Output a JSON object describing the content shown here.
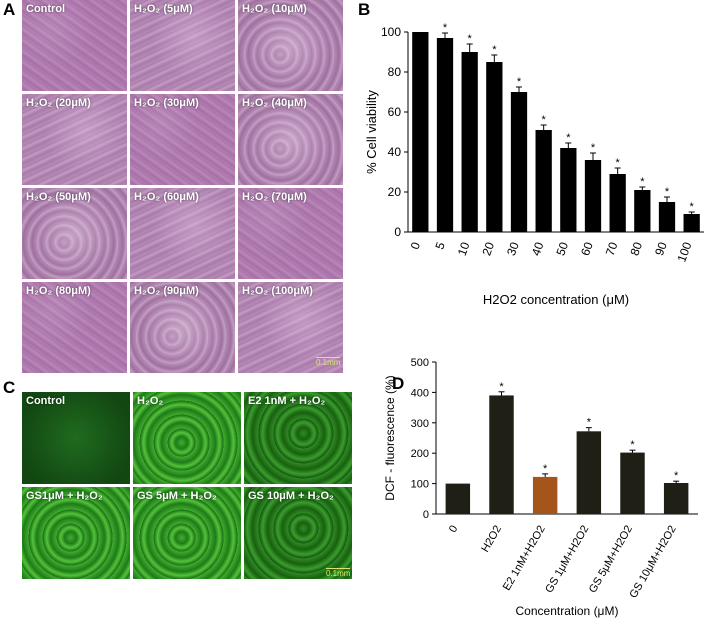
{
  "panel_letters": {
    "a": "A",
    "b": "B",
    "c": "C",
    "d": "D"
  },
  "micrographs_a": [
    {
      "label": "Control"
    },
    {
      "label": "H₂O₂ (5μM)"
    },
    {
      "label": "H₂O₂ (10μM)"
    },
    {
      "label": "H₂O₂ (20μM)"
    },
    {
      "label": "H₂O₂ (30μM)"
    },
    {
      "label": "H₂O₂ (40μM)"
    },
    {
      "label": "H₂O₂ (50μM)"
    },
    {
      "label": "H₂O₂ (60μM)"
    },
    {
      "label": "H₂O₂ (70μM)"
    },
    {
      "label": "H₂O₂ (80μM)"
    },
    {
      "label": "H₂O₂ (90μM)"
    },
    {
      "label": "H₂O₂ (100μM)"
    }
  ],
  "scale_bar_a": "0.1mm",
  "micrographs_c": [
    {
      "label": "Control"
    },
    {
      "label": "H₂O₂"
    },
    {
      "label": "E2 1nM + H₂O₂"
    },
    {
      "label": "GS1μM + H₂O₂"
    },
    {
      "label": "GS 5μM + H₂O₂"
    },
    {
      "label": "GS 10μM + H₂O₂"
    }
  ],
  "scale_bar_c": "0.1mm",
  "chart_data": [
    {
      "type": "bar",
      "panel": "B",
      "categories": [
        "0",
        "5",
        "10",
        "20",
        "30",
        "40",
        "50",
        "60",
        "70",
        "80",
        "90",
        "100"
      ],
      "values": [
        100,
        97,
        90,
        85,
        70,
        51,
        42,
        36,
        29,
        21,
        15,
        9
      ],
      "errors": [
        0,
        2.5,
        4,
        3.5,
        2.5,
        2.5,
        2.5,
        3.5,
        3,
        1.5,
        2.5,
        1
      ],
      "significance": [
        "",
        "*",
        "*",
        "*",
        "*",
        "*",
        "*",
        "*",
        "*",
        "*",
        "*",
        "*"
      ],
      "xlabel": "H2O2 concentration  (μM)",
      "ylabel": "% Cell viability",
      "ylim": [
        0,
        100
      ],
      "yticks": [
        0,
        20,
        40,
        60,
        80,
        100
      ],
      "bar_color": "#000000",
      "grid": false
    },
    {
      "type": "bar",
      "panel": "D",
      "categories": [
        "0",
        "H2O2",
        "E2 1nM+H2O2",
        "GS 1μM+H2O2",
        "GS 5μM+H2O2",
        "GS 10μM+H2O2"
      ],
      "values": [
        100,
        390,
        122,
        272,
        202,
        102
      ],
      "errors": [
        0,
        12,
        10,
        12,
        8,
        6
      ],
      "significance": [
        "",
        "*",
        "*",
        "*",
        "*",
        "*"
      ],
      "bar_colors": [
        "#1f1f16",
        "#1f1f16",
        "#a5541a",
        "#1f1f16",
        "#1f1f16",
        "#1f1f16"
      ],
      "xlabel": "Concentration (μM)",
      "ylabel": "DCF - fluorescence (%)",
      "ylim": [
        0,
        500
      ],
      "yticks": [
        0,
        100,
        200,
        300,
        400,
        500
      ],
      "grid": false
    }
  ]
}
